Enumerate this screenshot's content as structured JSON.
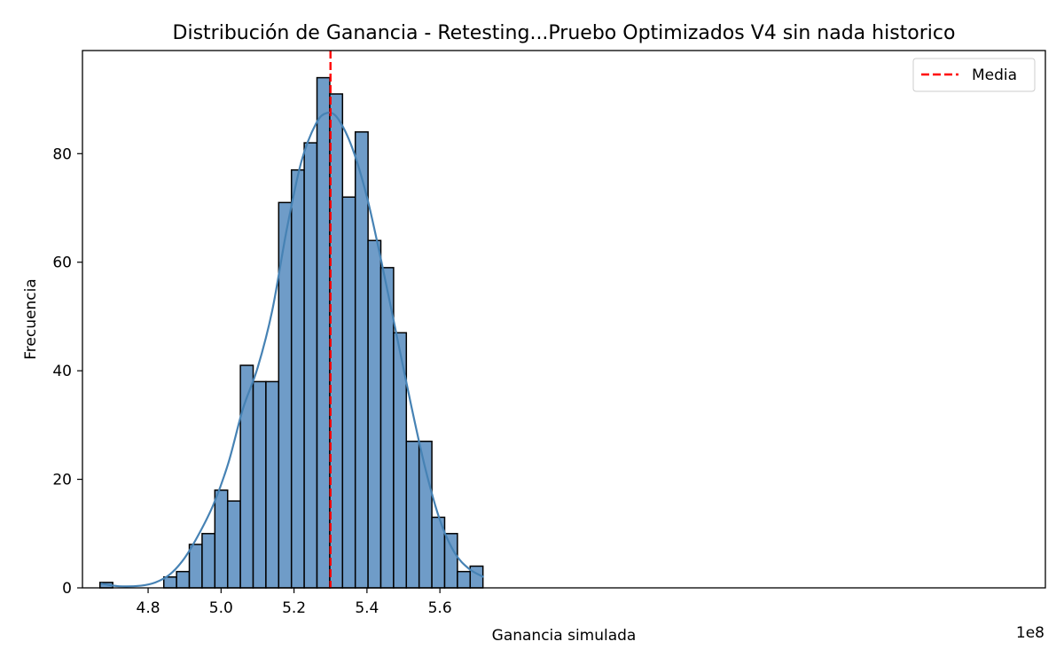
{
  "chart_data": {
    "type": "bar",
    "title": "Distribución de Ganancia - Retesting...Pruebo Optimizados V4 sin nada historico",
    "xlabel": "Ganancia simulada",
    "ylabel": "Frecuencia",
    "x_offset_text": "1e8",
    "x_unit_scale": 100000000,
    "xlim": [
      462000000,
      726000000
    ],
    "ylim": [
      0,
      99
    ],
    "x_ticks": [
      480000000,
      500000000,
      520000000,
      540000000,
      560000000
    ],
    "x_tick_labels": [
      "4.8",
      "5.0",
      "5.2",
      "5.4",
      "5.6"
    ],
    "y_ticks": [
      0,
      20,
      40,
      60,
      80
    ],
    "y_tick_labels": [
      "0",
      "20",
      "40",
      "60",
      "80"
    ],
    "grid": false,
    "legend_position": "top-right",
    "bar_color": "#6f9cc8",
    "bar_edge_color": "#000000",
    "kde_color": "#4682b4",
    "mean_line_color": "#ff0000",
    "bin_edges": [
      466800000,
      470300000,
      473800000,
      477300000,
      480800000,
      484300000,
      487800000,
      491300000,
      494800000,
      498300000,
      501800000,
      505300000,
      508800000,
      512300000,
      515800000,
      519300000,
      522800000,
      526300000,
      529800000,
      533300000,
      536800000,
      540300000,
      543800000,
      547300000,
      550800000,
      554300000,
      557800000,
      561300000,
      564800000,
      568300000,
      571800000
    ],
    "counts": [
      1,
      0,
      0,
      0,
      0,
      2,
      3,
      8,
      10,
      18,
      16,
      41,
      38,
      38,
      71,
      77,
      82,
      94,
      91,
      72,
      84,
      64,
      59,
      47,
      27,
      27,
      13,
      10,
      3,
      4
    ],
    "mean": 530000000,
    "legend": [
      {
        "label": "Media",
        "style": "dashed",
        "color": "#ff0000"
      }
    ],
    "kde": {
      "x": [
        467000000,
        472000000,
        478000000,
        482000000,
        486000000,
        490000000,
        494000000,
        498000000,
        502000000,
        506000000,
        510000000,
        514000000,
        518000000,
        522000000,
        526000000,
        529000000,
        532000000,
        536000000,
        540000000,
        544000000,
        548000000,
        552000000,
        556000000,
        560000000,
        564000000,
        568000000,
        572000000
      ],
      "y": [
        0.8,
        0.3,
        0.4,
        1.0,
        2.5,
        5.5,
        10.0,
        15.5,
        23.0,
        33.0,
        40.5,
        51.0,
        66.0,
        78.5,
        85.5,
        87.5,
        86.5,
        81.0,
        72.0,
        60.0,
        47.0,
        34.0,
        22.0,
        12.5,
        6.5,
        3.5,
        2.0
      ]
    }
  }
}
